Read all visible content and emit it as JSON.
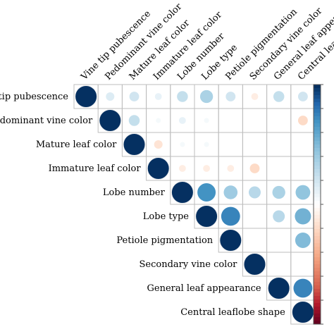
{
  "chart_data": {
    "type": "heatmap",
    "subtype": "upper-triangular correlation matrix",
    "variables_top": [
      "Vine tip pubescence",
      "Pedominant vine color",
      "Mature leaf color",
      "Immature leaf color",
      "Lobe number",
      "Lobe type",
      "Petiole pigmentation",
      "Secondary vine color",
      "General leaf appearance",
      "Central leaflobe shape"
    ],
    "variables_left": [
      "Vine tip pubescence",
      "Predominant vine color",
      "Mature leaf color",
      "Immature leaf color",
      "Lobe number",
      "Lobe type",
      "Petiole pigmentation",
      "Secondary vine color",
      "General leaf appearance",
      "Central leaflobe shape"
    ],
    "matrix": [
      [
        1.0,
        0.15,
        0.2,
        0.1,
        0.25,
        0.35,
        0.2,
        -0.1,
        0.25,
        0.2
      ],
      [
        null,
        1.0,
        0.25,
        0.05,
        0.1,
        0.05,
        0.0,
        0.0,
        0.0,
        -0.2
      ],
      [
        null,
        null,
        1.0,
        -0.15,
        0.05,
        0.05,
        0.0,
        0.0,
        0.0,
        0.0
      ],
      [
        null,
        null,
        null,
        1.0,
        -0.1,
        -0.1,
        -0.1,
        -0.2,
        0.0,
        0.0
      ],
      [
        null,
        null,
        null,
        null,
        1.0,
        0.7,
        0.4,
        0.3,
        0.35,
        0.45
      ],
      [
        null,
        null,
        null,
        null,
        null,
        1.0,
        0.75,
        0.0,
        0.3,
        0.55
      ],
      [
        null,
        null,
        null,
        null,
        null,
        null,
        1.0,
        0.0,
        0.0,
        0.5
      ],
      [
        null,
        null,
        null,
        null,
        null,
        null,
        null,
        1.0,
        0.0,
        0.0
      ],
      [
        null,
        null,
        null,
        null,
        null,
        null,
        null,
        null,
        1.0,
        0.75
      ],
      [
        null,
        null,
        null,
        null,
        null,
        null,
        null,
        null,
        null,
        1.0
      ]
    ],
    "color_scale": {
      "min": -1,
      "max": 1,
      "negative": "#67001f",
      "zero": "#ffffff",
      "positive": "#053061"
    },
    "legend": "right colorbar",
    "grid": true
  }
}
